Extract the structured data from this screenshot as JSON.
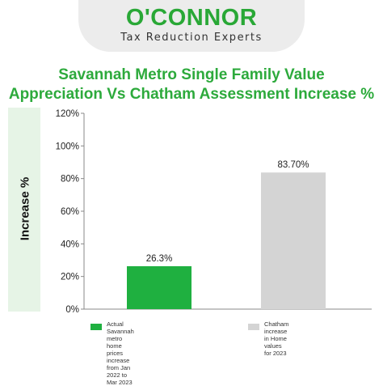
{
  "logo": {
    "wordmark": "O'CONNOR",
    "tagline": "Tax Reduction Experts"
  },
  "colors": {
    "brand_green": "#2daa3c",
    "bar_green": "#1fb040",
    "bar_gray": "#d4d4d4",
    "ylabel_band": "#e6f4e6"
  },
  "chart_data": {
    "type": "bar",
    "title_lines": [
      "Savannah Metro Single Family Value",
      "Appreciation Vs Chatham Assessment Increase %"
    ],
    "ylabel": "Increase %",
    "ylim": [
      0,
      120
    ],
    "yticks": [
      "0%",
      "20%",
      "40%",
      "60%",
      "80%",
      "100%",
      "120%"
    ],
    "grid": false,
    "legend_position": "bottom",
    "categories": [
      "Actual Savannah metro home prices increase from Jan 2022 to Mar 2023",
      "Chatham increase in Home values for 2023"
    ],
    "values": [
      26.3,
      83.7
    ],
    "data_labels": [
      "26.3%",
      "83.70%"
    ],
    "legend": [
      {
        "label": "Actual Savannah metro home prices\nincrease from Jan 2022 to Mar 2023",
        "color": "#1fb040"
      },
      {
        "label": "Chatham increase in Home\nvalues for 2023",
        "color": "#d4d4d4"
      }
    ]
  }
}
